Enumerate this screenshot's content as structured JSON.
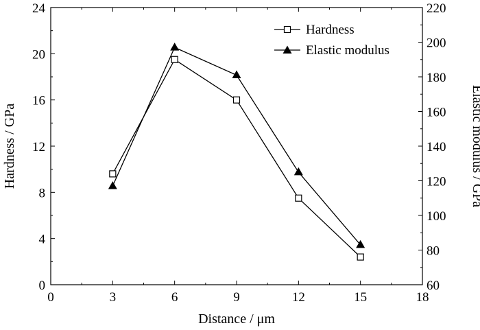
{
  "chart_data": {
    "type": "line",
    "title": "",
    "xlabel": "Distance / μm",
    "ylabel_left": "Hardness / GPa",
    "ylabel_right": "Elastic modulus / GPa",
    "xlim": [
      0,
      18
    ],
    "ylim_left": [
      0,
      24
    ],
    "ylim_right": [
      60,
      220
    ],
    "x_ticks": [
      0,
      3,
      6,
      9,
      12,
      15,
      18
    ],
    "y_left_ticks": [
      0,
      4,
      8,
      12,
      16,
      20,
      24
    ],
    "y_right_ticks": [
      60,
      80,
      100,
      120,
      140,
      160,
      180,
      200,
      220
    ],
    "grid": false,
    "legend_position": "top-right",
    "series": [
      {
        "name": "Hardness",
        "axis": "left",
        "marker": "open-square",
        "x": [
          3,
          6,
          9,
          12,
          15
        ],
        "values": [
          9.6,
          19.5,
          16.0,
          7.5,
          2.4
        ]
      },
      {
        "name": "Elastic modulus",
        "axis": "right",
        "marker": "filled-triangle",
        "x": [
          3,
          6,
          9,
          12,
          15
        ],
        "values": [
          117,
          197,
          181,
          125,
          83
        ]
      }
    ]
  }
}
